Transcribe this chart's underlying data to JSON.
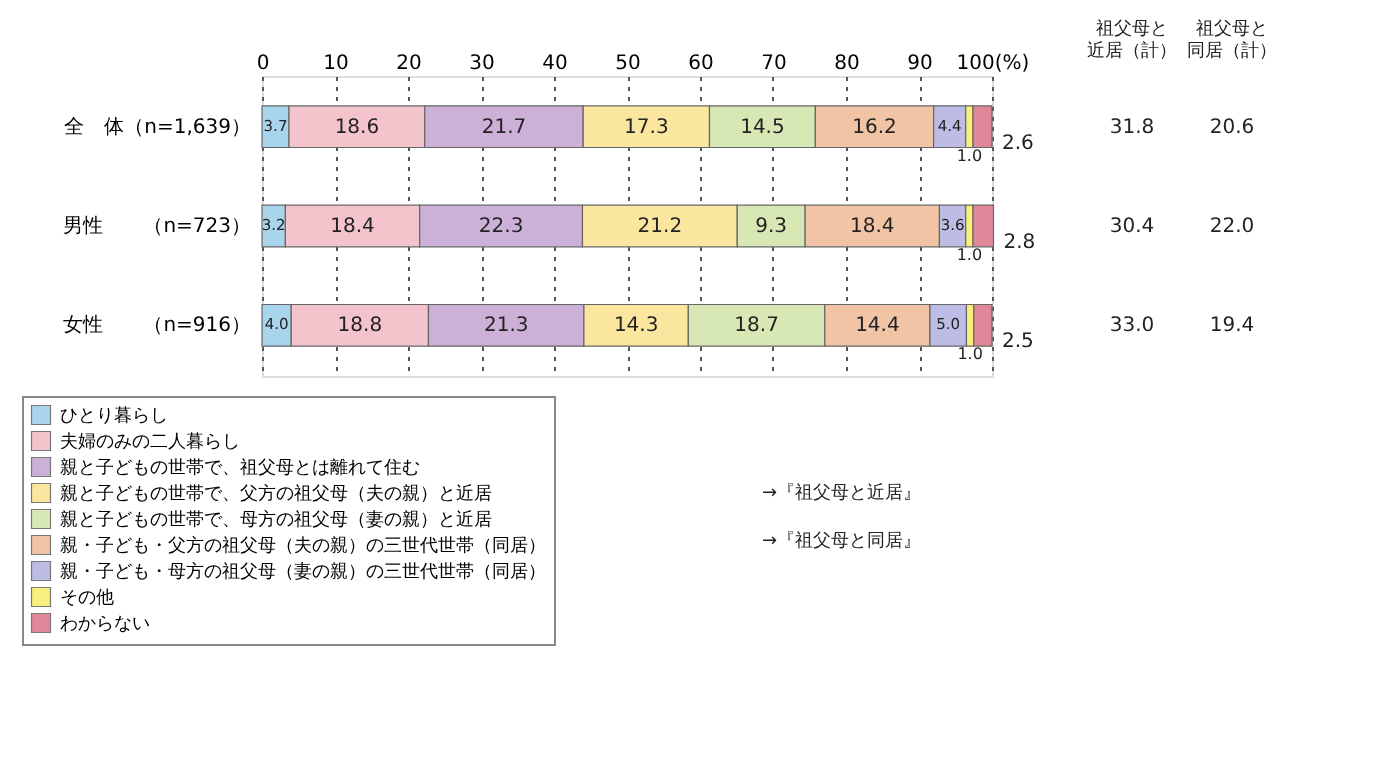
{
  "chart_data": {
    "type": "bar",
    "orientation": "horizontal",
    "stacked": true,
    "grid": "x",
    "legend": "bottom",
    "categories": [
      "全　体（n=1,639）",
      "男性　　（n=723）",
      "女性　　（n=916）"
    ],
    "xlim": [
      0,
      100
    ],
    "xticks": [
      0,
      10,
      20,
      30,
      40,
      50,
      60,
      70,
      80,
      90,
      {
        "value": 100,
        "label": "100(%)"
      }
    ],
    "series": [
      {
        "name": "ひとり暮らし",
        "color": "#a8d4ec",
        "values": [
          3.7,
          3.2,
          4.0
        ],
        "value_labels": [
          "3.7",
          "3.2",
          "4.0"
        ]
      },
      {
        "name": "夫婦のみの二人暮らし",
        "color": "#f4c4cc",
        "values": [
          18.6,
          18.4,
          18.8
        ],
        "value_labels": [
          "18.6",
          "18.4",
          "18.8"
        ]
      },
      {
        "name": "親と子どもの世帯で、祖父母とは離れて住む",
        "color": "#cdb0d8",
        "values": [
          21.7,
          22.3,
          21.3
        ],
        "value_labels": [
          "21.7",
          "22.3",
          "21.3"
        ]
      },
      {
        "name": "親と子どもの世帯で、父方の祖父母（夫の親）と近居",
        "color": "#fbe6a0",
        "values": [
          17.3,
          21.2,
          14.3
        ],
        "value_labels": [
          "17.3",
          "21.2",
          "14.3"
        ]
      },
      {
        "name": "親と子どもの世帯で、母方の祖父母（妻の親）と近居",
        "color": "#d8e8b4",
        "values": [
          14.5,
          9.3,
          18.7
        ],
        "value_labels": [
          "14.5",
          "9.3",
          "18.7"
        ]
      },
      {
        "name": "親・子ども・父方の祖父母（夫の親）の三世代世帯（同居）",
        "color": "#f2c4a6",
        "values": [
          16.2,
          18.4,
          14.4
        ],
        "value_labels": [
          "16.2",
          "18.4",
          "14.4"
        ]
      },
      {
        "name": "親・子ども・母方の祖父母（妻の親）の三世代世帯（同居）",
        "color": "#bcbce4",
        "values": [
          4.4,
          3.6,
          5.0
        ],
        "value_labels": [
          "4.4",
          "3.6",
          "5.0"
        ]
      },
      {
        "name": "その他",
        "color": "#f8f07c",
        "values": [
          1.0,
          1.0,
          1.0
        ],
        "value_labels": [
          "1.0",
          "1.0",
          "1.0"
        ]
      },
      {
        "name": "わからない",
        "color": "#e0889a",
        "values": [
          2.6,
          2.8,
          2.5
        ],
        "value_labels": [
          "2.6",
          "2.8",
          "2.5"
        ]
      }
    ],
    "annotations": [
      "祖父母と近居（計）",
      "祖父母と同居（計）",
      "31.8",
      "20.6",
      "30.4",
      "22.0",
      "33.0",
      "19.4",
      "→『祖父母と近居』",
      "→『祖父母と同居』"
    ]
  }
}
